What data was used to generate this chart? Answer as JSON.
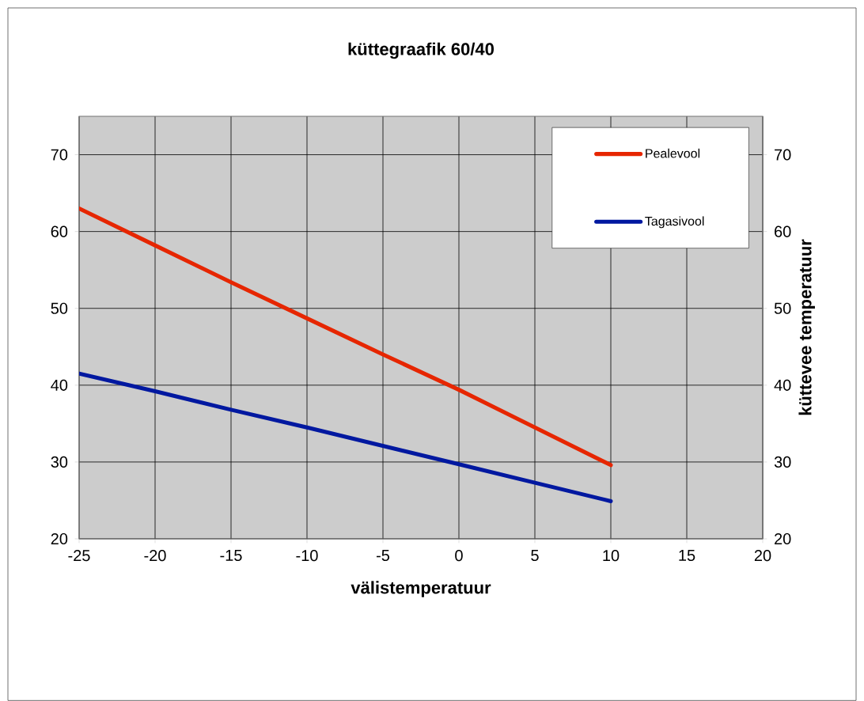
{
  "chart_data": {
    "type": "line",
    "title": "küttegraafik 60/40",
    "xlabel": "välistemperatuur",
    "y2label": "küttevee temperatuur",
    "x": [
      -25,
      -20,
      -15,
      -10,
      -5,
      0,
      5,
      10
    ],
    "series": [
      {
        "name": "Pealevool",
        "color": "#e62600",
        "values": [
          63,
          58.2,
          53.4,
          48.7,
          44,
          39.4,
          34.5,
          29.6
        ]
      },
      {
        "name": "Tagasivool",
        "color": "#0018a0",
        "values": [
          41.5,
          39.2,
          36.8,
          34.5,
          32.1,
          29.7,
          27.3,
          24.9
        ]
      }
    ],
    "xlim": [
      -25,
      20
    ],
    "xticks": [
      -25,
      -20,
      -15,
      -10,
      -5,
      0,
      5,
      10,
      15,
      20
    ],
    "ylim": [
      20,
      75
    ],
    "yticks": [
      20,
      30,
      40,
      50,
      60,
      70
    ],
    "y2lim": [
      20,
      75
    ],
    "y2ticks": [
      20,
      30,
      40,
      50,
      60,
      70
    ],
    "grid": true,
    "legend": "top right",
    "marker": "none",
    "line_style": "solid"
  }
}
